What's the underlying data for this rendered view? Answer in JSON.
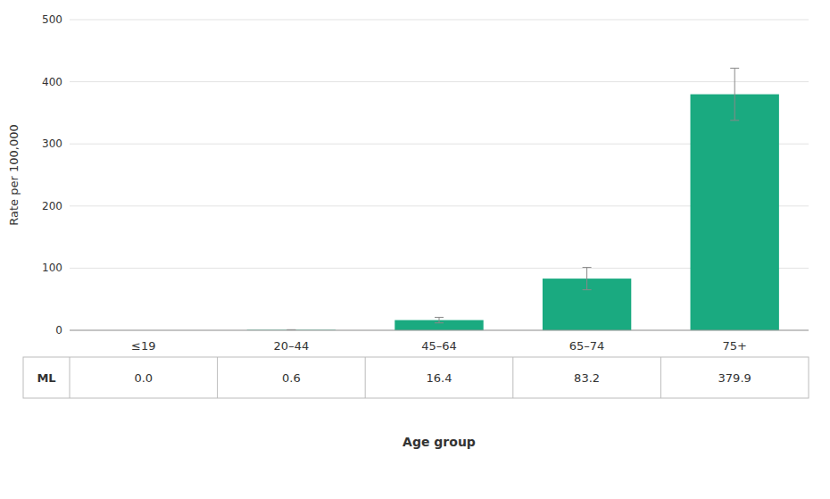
{
  "chart_data": {
    "type": "bar",
    "categories": [
      "≤19",
      "20–44",
      "45–64",
      "65–74",
      "75+"
    ],
    "values": [
      0.0,
      0.6,
      16.4,
      83.2,
      379.9
    ],
    "errors": [
      0.0,
      0.35,
      4.5,
      18.0,
      42.0
    ],
    "color": "#1aaa80",
    "ylabel": "Rate per 100,000",
    "xlabel": "Age group",
    "ylim": [
      0,
      500
    ],
    "yticks": [
      0,
      100,
      200,
      300,
      400,
      500
    ],
    "grid": true,
    "data_labels": true,
    "value_labels": [
      "0.0",
      "0.6",
      "16.4",
      "83.2",
      "379.9"
    ],
    "table_row_label": "ML"
  }
}
